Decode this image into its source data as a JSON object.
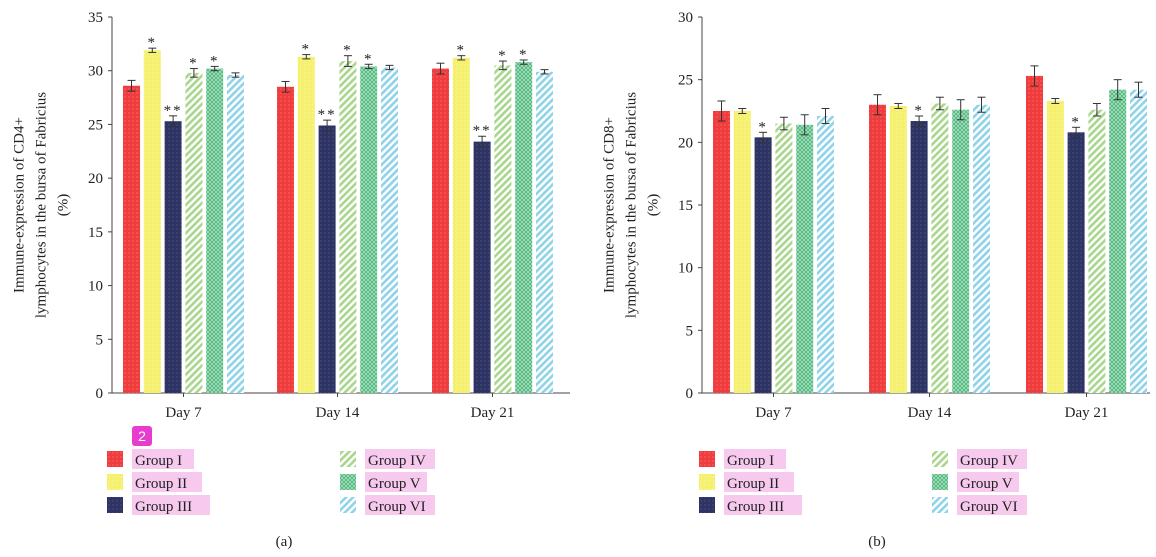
{
  "badge": "2",
  "colors": {
    "g1": "#f03c3c",
    "g2": "#f5f06e",
    "g3": "#2d3464",
    "g4": "#a8d68c",
    "g5": "#4cb87a",
    "g6": "#8fd3e8",
    "label_highlight": "#f7c9ee"
  },
  "legend": [
    {
      "label": "Group I",
      "icon": "solid"
    },
    {
      "label": "Group II",
      "icon": "solid"
    },
    {
      "label": "Group III",
      "icon": "solid"
    },
    {
      "label": "Group IV",
      "icon": "diagonal-hatch"
    },
    {
      "label": "Group V",
      "icon": "crosshatch"
    },
    {
      "label": "Group VI",
      "icon": "diagonal-hatch"
    }
  ],
  "chart_data": [
    {
      "type": "bar",
      "panel_label": "(a)",
      "ylabel_lines": [
        "Immune-expression of CD4+",
        "lymphocytes in the bursa of Fabricius",
        "(%)"
      ],
      "categories": [
        "Day 7",
        "Day 14",
        "Day 21"
      ],
      "ylim": [
        0,
        35
      ],
      "yticks": [
        0,
        5,
        10,
        15,
        20,
        25,
        30,
        35
      ],
      "series": [
        {
          "name": "Group I",
          "values": [
            28.6,
            28.5,
            30.2
          ],
          "errors": [
            0.5,
            0.5,
            0.5
          ],
          "marks": [
            "",
            "",
            ""
          ]
        },
        {
          "name": "Group II",
          "values": [
            31.9,
            31.3,
            31.2
          ],
          "errors": [
            0.2,
            0.2,
            0.2
          ],
          "marks": [
            "*",
            "*",
            "*"
          ]
        },
        {
          "name": "Group III",
          "values": [
            25.3,
            24.9,
            23.4
          ],
          "errors": [
            0.5,
            0.5,
            0.5
          ],
          "marks": [
            "**",
            "**",
            "**"
          ]
        },
        {
          "name": "Group IV",
          "values": [
            29.8,
            30.9,
            30.5
          ],
          "errors": [
            0.4,
            0.5,
            0.4
          ],
          "marks": [
            "*",
            "*",
            "*"
          ]
        },
        {
          "name": "Group V",
          "values": [
            30.2,
            30.4,
            30.8
          ],
          "errors": [
            0.2,
            0.2,
            0.2
          ],
          "marks": [
            "*",
            "*",
            "*"
          ]
        },
        {
          "name": "Group VI",
          "values": [
            29.6,
            30.3,
            29.9
          ],
          "errors": [
            0.2,
            0.2,
            0.2
          ],
          "marks": [
            "",
            "",
            ""
          ]
        }
      ]
    },
    {
      "type": "bar",
      "panel_label": "(b)",
      "ylabel_lines": [
        "Immune-expression of CD8+",
        "lymphocytes in the bursa of Fabricius",
        "(%)"
      ],
      "categories": [
        "Day 7",
        "Day 14",
        "Day 21"
      ],
      "ylim": [
        0,
        30
      ],
      "yticks": [
        0,
        5,
        10,
        15,
        20,
        25,
        30
      ],
      "series": [
        {
          "name": "Group I",
          "values": [
            22.5,
            23.0,
            25.3
          ],
          "errors": [
            0.8,
            0.8,
            0.8
          ],
          "marks": [
            "",
            "",
            ""
          ]
        },
        {
          "name": "Group II",
          "values": [
            22.5,
            22.9,
            23.3
          ],
          "errors": [
            0.2,
            0.2,
            0.2
          ],
          "marks": [
            "",
            "",
            ""
          ]
        },
        {
          "name": "Group III",
          "values": [
            20.4,
            21.7,
            20.8
          ],
          "errors": [
            0.4,
            0.4,
            0.4
          ],
          "marks": [
            "*",
            "*",
            "*"
          ]
        },
        {
          "name": "Group IV",
          "values": [
            21.5,
            23.1,
            22.6
          ],
          "errors": [
            0.5,
            0.5,
            0.5
          ],
          "marks": [
            "",
            "",
            ""
          ]
        },
        {
          "name": "Group V",
          "values": [
            21.4,
            22.6,
            24.2
          ],
          "errors": [
            0.8,
            0.8,
            0.8
          ],
          "marks": [
            "",
            "",
            ""
          ]
        },
        {
          "name": "Group VI",
          "values": [
            22.1,
            23.0,
            24.2
          ],
          "errors": [
            0.6,
            0.6,
            0.6
          ],
          "marks": [
            "",
            "",
            ""
          ]
        }
      ]
    }
  ]
}
